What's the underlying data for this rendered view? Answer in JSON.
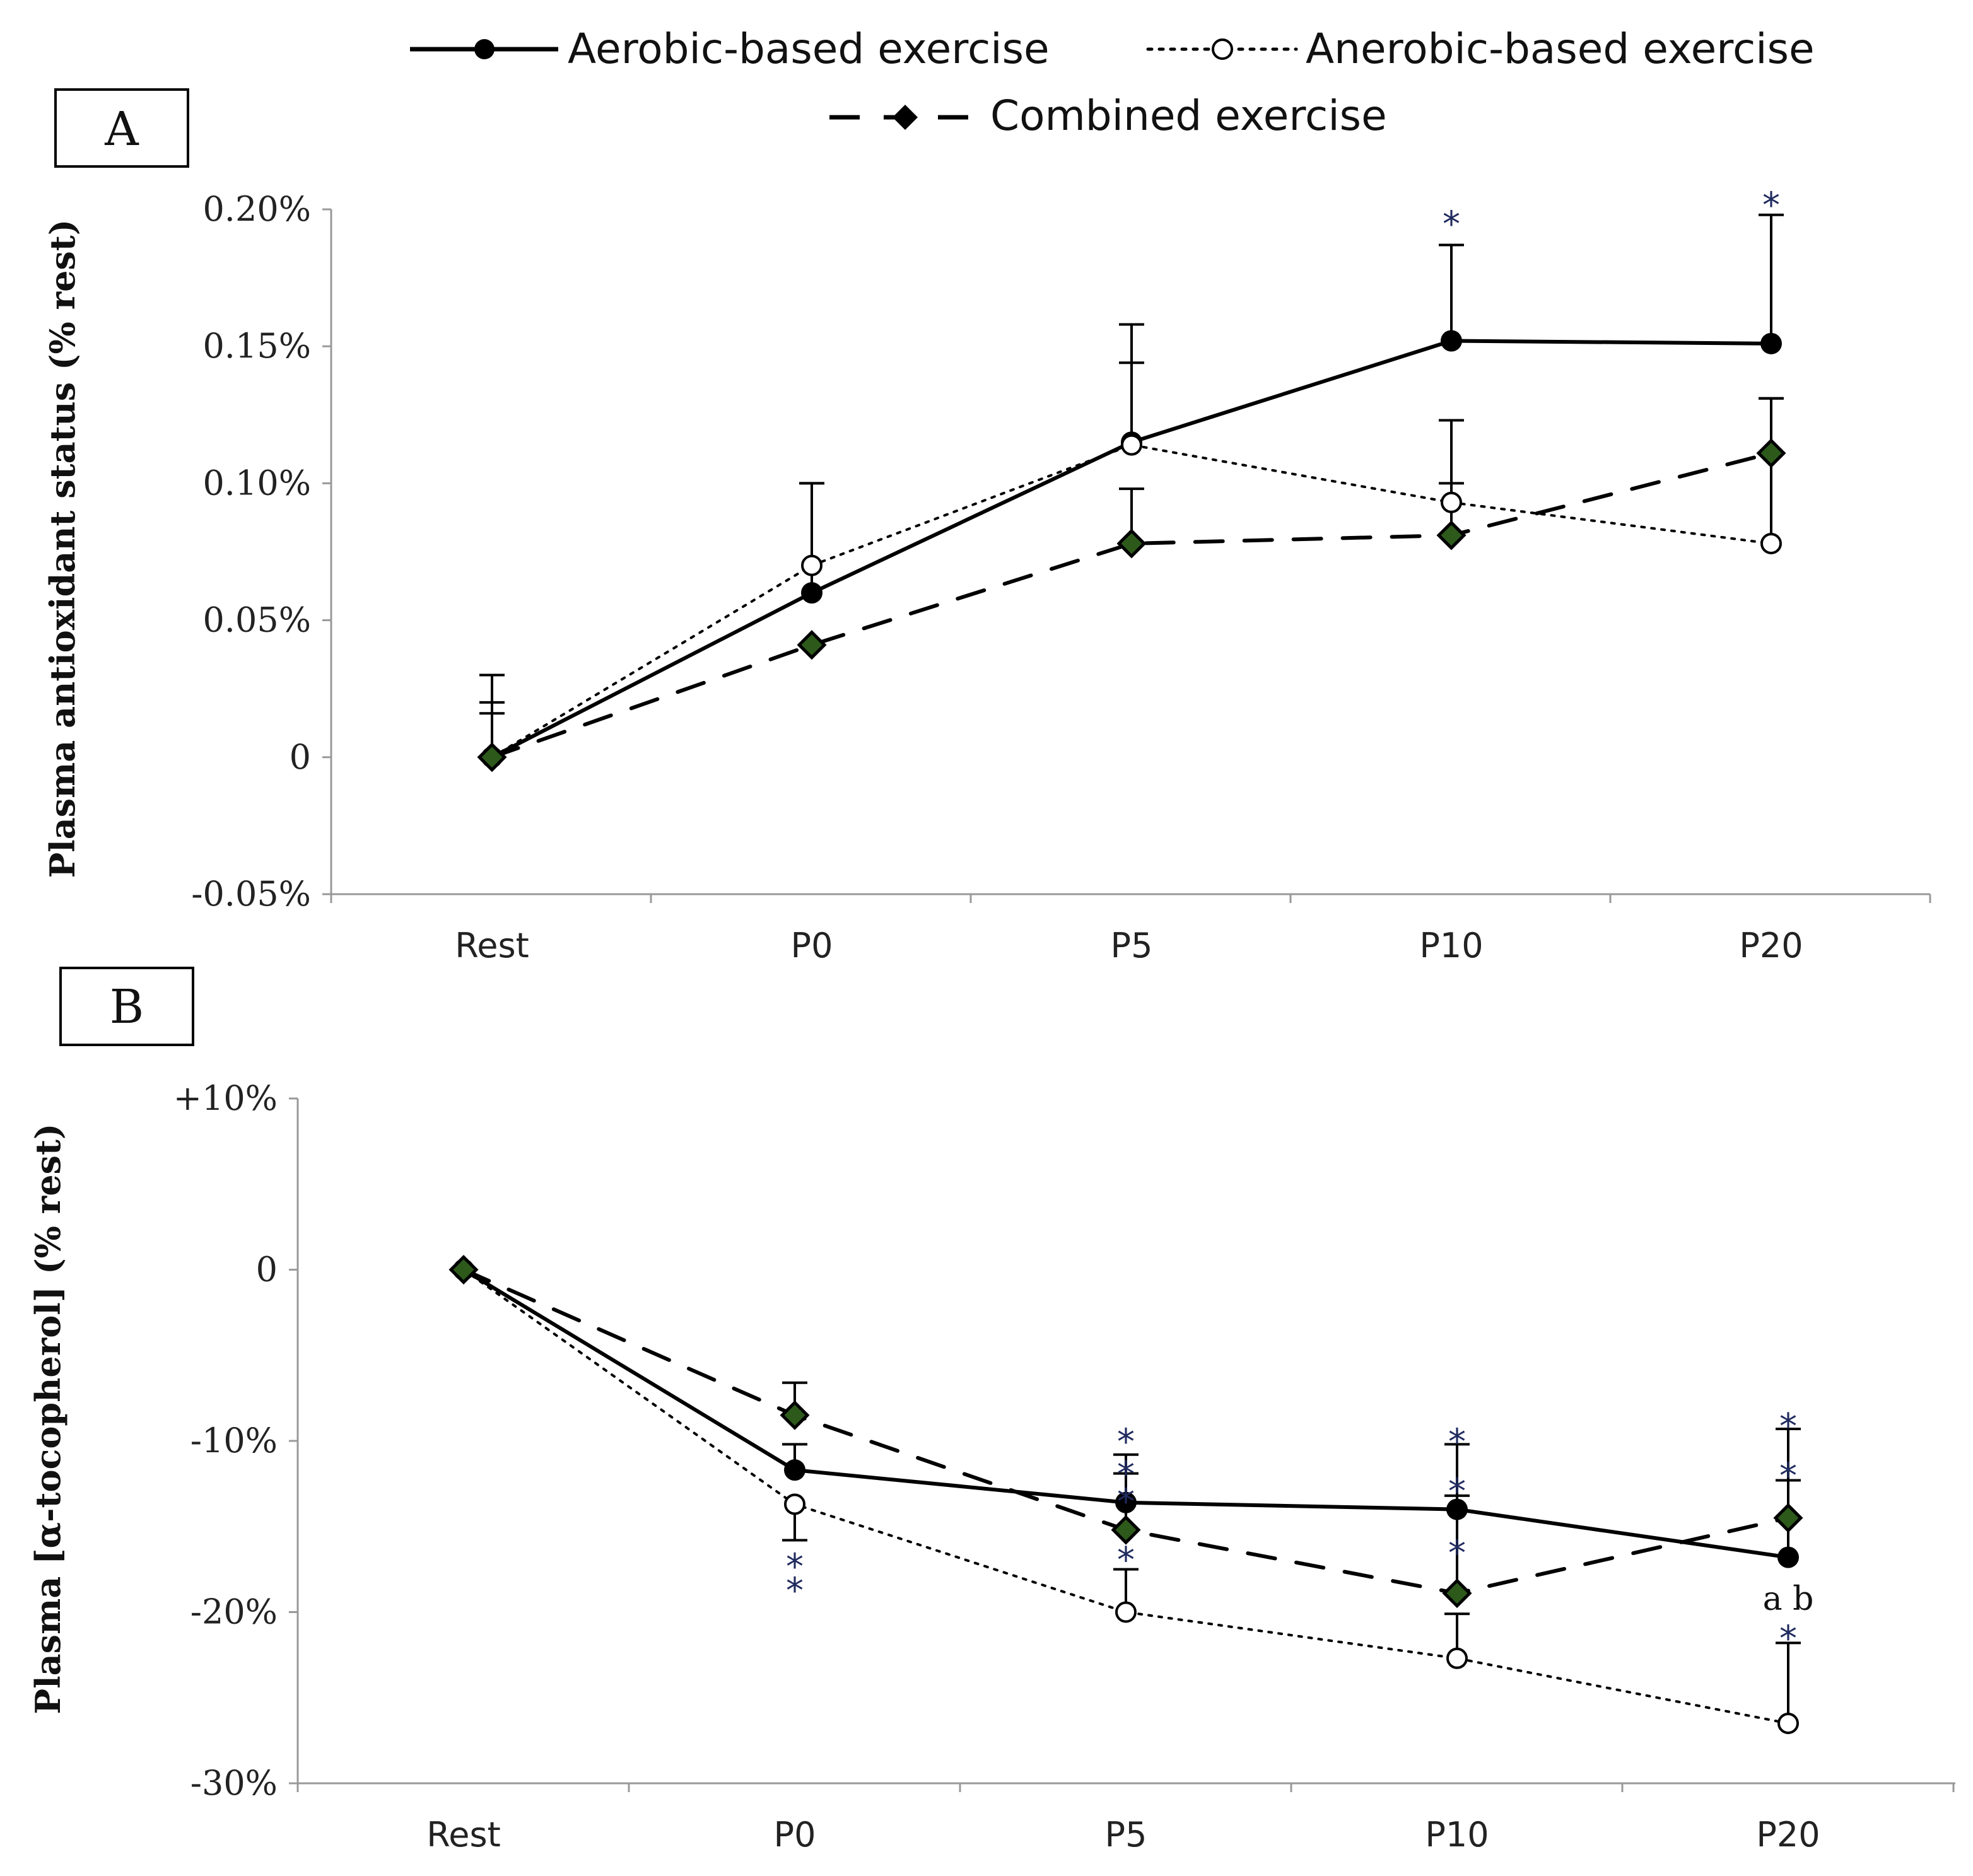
{
  "legend": {
    "aerobic": "Aerobic-based exercise",
    "anaerobic": "Anerobic-based exercise",
    "combined": "Combined exercise"
  },
  "chart_data": [
    {
      "type": "line",
      "panel": "A",
      "title": "",
      "xlabel": "",
      "ylabel": "Plasma antioxidant  status (% rest)",
      "categories": [
        "Rest",
        "P0",
        "P5",
        "P10",
        "P20"
      ],
      "y_ticks": [
        {
          "value": -0.05,
          "label": "-0.05%"
        },
        {
          "value": 0,
          "label": "0"
        },
        {
          "value": 0.05,
          "label": "0.05%"
        },
        {
          "value": 0.1,
          "label": "0.10%"
        },
        {
          "value": 0.15,
          "label": "0.15%"
        },
        {
          "value": 0.2,
          "label": "0.20%"
        }
      ],
      "ylim": [
        -0.05,
        0.2
      ],
      "series": [
        {
          "key": "aerobic",
          "name": "Aerobic-based exercise",
          "values": [
            0,
            0.06,
            0.115,
            0.152,
            0.151
          ],
          "err_high": [
            0.03,
            0.1,
            0.158,
            0.187,
            0.198
          ]
        },
        {
          "key": "anaerobic",
          "name": "Anerobic-based exercise",
          "values": [
            0,
            0.07,
            0.114,
            0.093,
            0.078
          ],
          "err_high": [
            0.02,
            0.1,
            0.144,
            0.123,
            0.131
          ]
        },
        {
          "key": "combined",
          "name": "Combined exercise",
          "values": [
            0,
            0.041,
            0.078,
            0.081,
            0.111
          ],
          "err_high": [
            0.016,
            0.041,
            0.098,
            0.1,
            0.131
          ]
        }
      ],
      "annotations": [
        {
          "category": "P10",
          "value": 0.198,
          "text": "*"
        },
        {
          "category": "P20",
          "value": 0.205,
          "text": "*"
        }
      ]
    },
    {
      "type": "line",
      "panel": "B",
      "title": "",
      "xlabel": "",
      "ylabel": "Plasma [α-tocopherol]  (% rest)",
      "categories": [
        "Rest",
        "P0",
        "P5",
        "P10",
        "P20"
      ],
      "y_ticks": [
        {
          "value": -30,
          "label": "-30%"
        },
        {
          "value": -20,
          "label": "-20%"
        },
        {
          "value": -10,
          "label": "-10%"
        },
        {
          "value": 0,
          "label": "0"
        },
        {
          "value": 10,
          "label": "+10%"
        }
      ],
      "ylim": [
        -30,
        10
      ],
      "series": [
        {
          "key": "aerobic",
          "name": "Aerobic-based exercise",
          "values": [
            0,
            -11.7,
            -13.6,
            -14.0,
            -16.8
          ],
          "err_low": [
            0,
            -10.2,
            -11.9,
            -13.2,
            -12.3
          ]
        },
        {
          "key": "anaerobic",
          "name": "Anerobic-based exercise",
          "values": [
            0,
            -13.7,
            -20.0,
            -22.7,
            -26.5
          ],
          "err_low": [
            0,
            -15.8,
            -17.5,
            -20.1,
            -21.8
          ]
        },
        {
          "key": "combined",
          "name": "Combined exercise",
          "values": [
            0,
            -8.5,
            -15.2,
            -18.9,
            -14.5
          ],
          "err_low": [
            0,
            -6.6,
            -10.8,
            -10.2,
            -9.3
          ]
        }
      ],
      "annotations": [
        {
          "category": "P0",
          "value": -16.8,
          "text": "*"
        },
        {
          "category": "P0",
          "value": -18.2,
          "text": "*"
        },
        {
          "category": "P5",
          "value": -9.5,
          "text": "*"
        },
        {
          "category": "P5",
          "value": -11.4,
          "text": "*"
        },
        {
          "category": "P5",
          "value": -13.0,
          "text": "*"
        },
        {
          "category": "P5",
          "value": -16.4,
          "text": "*"
        },
        {
          "category": "P10",
          "value": -9.5,
          "text": "*"
        },
        {
          "category": "P10",
          "value": -12.4,
          "text": "*"
        },
        {
          "category": "P10",
          "value": -16.0,
          "text": "*"
        },
        {
          "category": "P20",
          "value": -8.6,
          "text": "*"
        },
        {
          "category": "P20",
          "value": -11.5,
          "text": "*"
        },
        {
          "category": "P20",
          "value": -19.2,
          "text": "a b"
        },
        {
          "category": "P20",
          "value": -21.0,
          "text": "*"
        }
      ]
    }
  ]
}
